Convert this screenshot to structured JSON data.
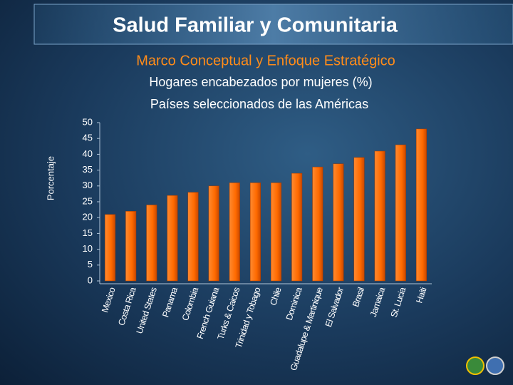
{
  "header": {
    "title": "Salud Familiar y Comunitaria",
    "subtitle": "Marco Conceptual y Enfoque Estratégico"
  },
  "chart_data": {
    "type": "bar",
    "title": "Hogares encabezados por mujeres (%)",
    "subtitle": "Países seleccionados de las Américas",
    "y_label": "Porcentaje",
    "categories": [
      "Mexico",
      "Costa Rica",
      "United States",
      "Panama",
      "Colombia",
      "French Guiana",
      "Turks & Caicos",
      "Trinidad y Tobago",
      "Chile",
      "Dominica",
      "Guadalupe & Martinique",
      "El Salvador",
      "Brasil",
      "Jamaica",
      "St. Lucia",
      "Haiti"
    ],
    "values": [
      21,
      22,
      24,
      27,
      28,
      30,
      31,
      31,
      31,
      34,
      36,
      37,
      39,
      41,
      43,
      48
    ],
    "color": "#ff6a00",
    "ylim": [
      0,
      50
    ],
    "yticks": [
      0,
      5,
      10,
      15,
      20,
      25,
      30,
      35,
      40,
      45,
      50
    ]
  }
}
